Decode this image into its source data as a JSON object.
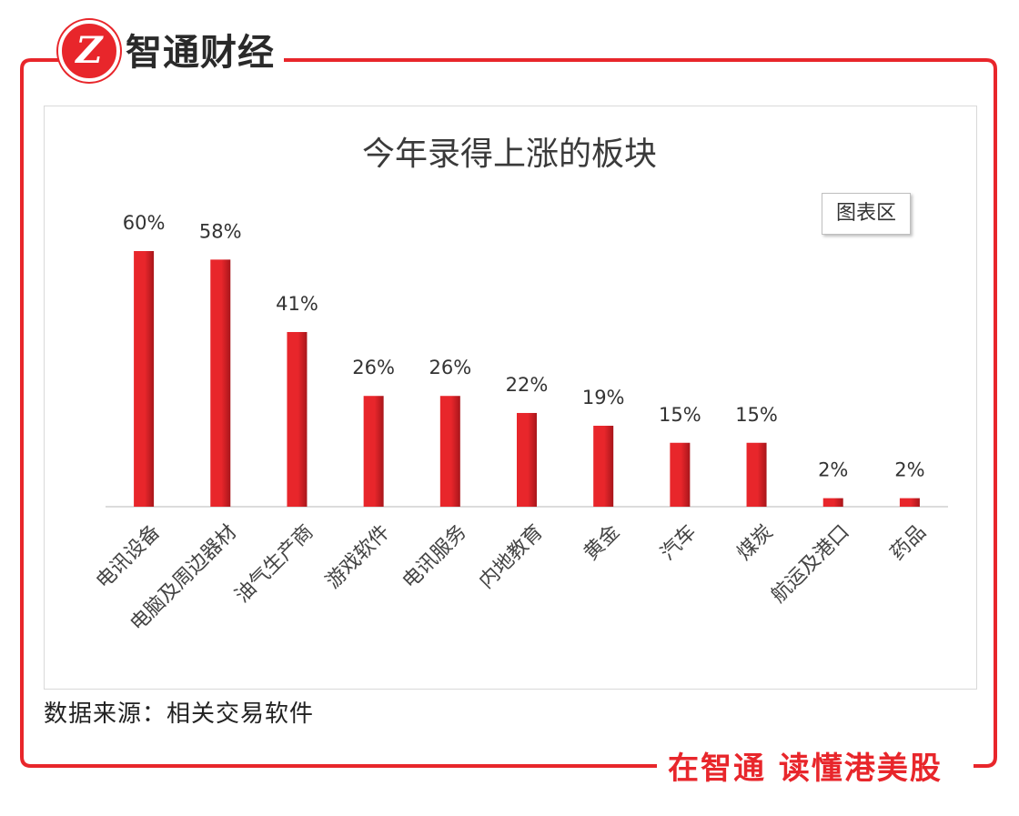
{
  "brand": {
    "name": "智通财经",
    "logo_mark": "Z",
    "color": "#e8262b"
  },
  "chart_area_label": "图表区",
  "source": "数据来源：相关交易软件",
  "slogan": "在智通 读懂港美股",
  "chart_data": {
    "type": "bar",
    "title": "今年录得上涨的板块",
    "categories": [
      "电讯设备",
      "电脑及周边器材",
      "油气生产商",
      "游戏软件",
      "电讯服务",
      "内地教育",
      "黄金",
      "汽车",
      "煤炭",
      "航运及港口",
      "药品"
    ],
    "values": [
      60,
      58,
      41,
      26,
      26,
      22,
      19,
      15,
      15,
      2,
      2
    ],
    "value_labels": [
      "60%",
      "58%",
      "41%",
      "26%",
      "26%",
      "22%",
      "19%",
      "15%",
      "15%",
      "2%",
      "2%"
    ],
    "value_unit": "%",
    "ylim": [
      0,
      60
    ],
    "bar_color": "#e8262b",
    "grid": false,
    "legend": "none",
    "xlabel": "",
    "ylabel": ""
  }
}
